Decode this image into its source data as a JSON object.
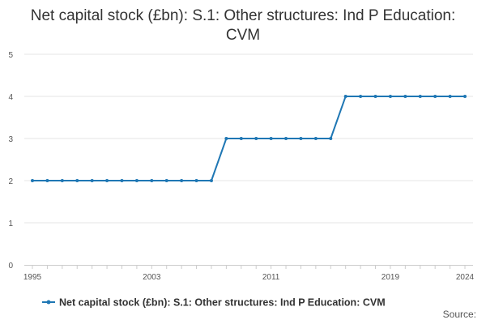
{
  "chart_data": {
    "type": "line",
    "title": "Net capital stock (£bn): S.1: Other structures: Ind P Education: CVM",
    "xlabel": "",
    "ylabel": "",
    "x": [
      1995,
      1996,
      1997,
      1998,
      1999,
      2000,
      2001,
      2002,
      2003,
      2004,
      2005,
      2006,
      2007,
      2008,
      2009,
      2010,
      2011,
      2012,
      2013,
      2014,
      2015,
      2016,
      2017,
      2018,
      2019,
      2020,
      2021,
      2022,
      2023,
      2024
    ],
    "series": [
      {
        "name": "Net capital stock (£bn): S.1: Other structures: Ind P Education: CVM",
        "color": "#1f77b4",
        "values": [
          2,
          2,
          2,
          2,
          2,
          2,
          2,
          2,
          2,
          2,
          2,
          2,
          2,
          3,
          3,
          3,
          3,
          3,
          3,
          3,
          3,
          4,
          4,
          4,
          4,
          4,
          4,
          4,
          4,
          4
        ]
      }
    ],
    "xticks": [
      1995,
      2003,
      2011,
      2019,
      2024
    ],
    "yticks": [
      0,
      1,
      2,
      3,
      4,
      5
    ],
    "xlim": [
      1995,
      2024
    ],
    "ylim": [
      0,
      5
    ],
    "grid": "horizontal",
    "legend_position": "bottom",
    "source_label": "Source:"
  }
}
